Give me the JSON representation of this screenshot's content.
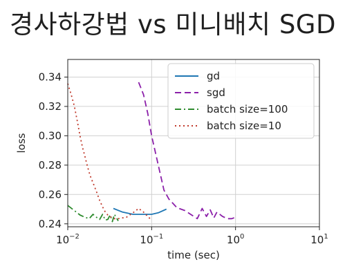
{
  "page": {
    "title": "경사하강법 vs 미니배치 SGD"
  },
  "chart_data": {
    "type": "line",
    "title": "",
    "xlabel": "time (sec)",
    "ylabel": "loss",
    "xscale": "log",
    "xlim": [
      0.01,
      10
    ],
    "ylim": [
      0.238,
      0.352
    ],
    "x_ticks": [
      {
        "value": 0.01,
        "base": "10",
        "exp": "−2"
      },
      {
        "value": 0.1,
        "base": "10",
        "exp": "−1"
      },
      {
        "value": 1,
        "base": "10",
        "exp": "0"
      },
      {
        "value": 10,
        "base": "10",
        "exp": "1"
      }
    ],
    "y_ticks": [
      {
        "value": 0.24,
        "label": "0.24"
      },
      {
        "value": 0.26,
        "label": "0.26"
      },
      {
        "value": 0.28,
        "label": "0.28"
      },
      {
        "value": 0.3,
        "label": "0.30"
      },
      {
        "value": 0.32,
        "label": "0.32"
      },
      {
        "value": 0.34,
        "label": "0.34"
      }
    ],
    "grid": true,
    "legend_position": "top-right",
    "series": [
      {
        "name": "gd",
        "color": "#1f77b4",
        "style": "solid",
        "x": [
          0.035,
          0.045,
          0.06,
          0.08,
          0.1,
          0.12,
          0.15
        ],
        "y": [
          0.2505,
          0.248,
          0.2465,
          0.2465,
          0.2465,
          0.2475,
          0.25
        ]
      },
      {
        "name": "sgd",
        "color": "#8b1fa9",
        "style": "dashed",
        "x": [
          0.07,
          0.08,
          0.09,
          0.1,
          0.12,
          0.14,
          0.16,
          0.2,
          0.25,
          0.3,
          0.35,
          0.4,
          0.45,
          0.5,
          0.55,
          0.6,
          0.7,
          0.8,
          0.9,
          1.0
        ],
        "y": [
          0.3365,
          0.328,
          0.315,
          0.3,
          0.28,
          0.263,
          0.257,
          0.251,
          0.249,
          0.246,
          0.2435,
          0.2505,
          0.245,
          0.2495,
          0.244,
          0.248,
          0.245,
          0.2435,
          0.2435,
          0.2445
        ]
      },
      {
        "name": "batch size=100",
        "color": "#2e8b2e",
        "style": "dashdot",
        "x": [
          0.01,
          0.012,
          0.014,
          0.016,
          0.018,
          0.02,
          0.022,
          0.024,
          0.026,
          0.028,
          0.03,
          0.032,
          0.034,
          0.036,
          0.04
        ],
        "y": [
          0.2525,
          0.249,
          0.246,
          0.2445,
          0.2435,
          0.2465,
          0.2445,
          0.243,
          0.2465,
          0.2425,
          0.243,
          0.246,
          0.2415,
          0.2465,
          0.242
        ]
      },
      {
        "name": "batch size=10",
        "color": "#c0392b",
        "style": "dotted",
        "x": [
          0.01,
          0.011,
          0.012,
          0.013,
          0.014,
          0.015,
          0.016,
          0.017,
          0.018,
          0.019,
          0.02,
          0.022,
          0.024,
          0.026,
          0.028,
          0.03,
          0.033,
          0.036,
          0.04,
          0.05,
          0.06,
          0.07,
          0.08,
          0.09,
          0.1
        ],
        "y": [
          0.3355,
          0.328,
          0.32,
          0.31,
          0.3,
          0.292,
          0.286,
          0.28,
          0.275,
          0.271,
          0.268,
          0.262,
          0.256,
          0.2515,
          0.248,
          0.246,
          0.2445,
          0.2435,
          0.2435,
          0.2445,
          0.2475,
          0.2505,
          0.248,
          0.245,
          0.2425
        ]
      }
    ]
  }
}
